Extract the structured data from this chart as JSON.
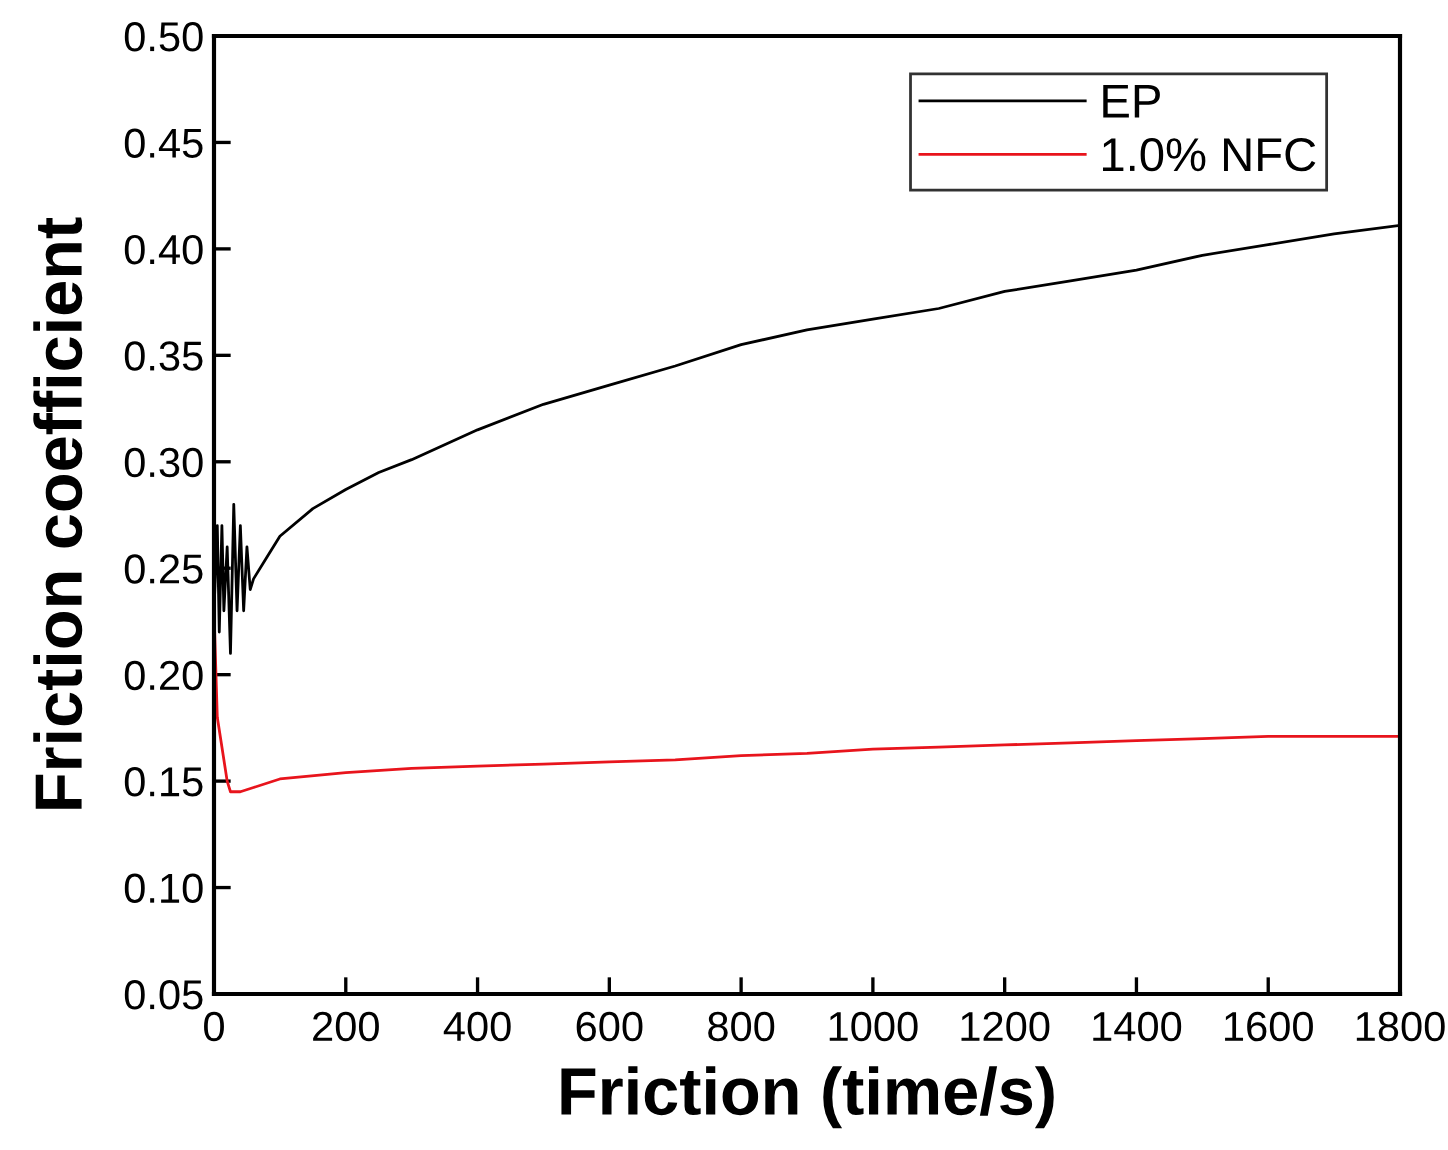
{
  "chart_data": {
    "type": "line",
    "xlabel": "Friction (time/s)",
    "ylabel": "Friction coefficient",
    "xlim": [
      0,
      1800
    ],
    "ylim": [
      0.05,
      0.5
    ],
    "xticks": [
      0,
      200,
      400,
      600,
      800,
      1000,
      1200,
      1400,
      1600,
      1800
    ],
    "yticks": [
      {
        "value": 0.05,
        "label": "0.05"
      },
      {
        "value": 0.1,
        "label": "0.10"
      },
      {
        "value": 0.15,
        "label": "0.15"
      },
      {
        "value": 0.2,
        "label": "0.20"
      },
      {
        "value": 0.25,
        "label": "0.25"
      },
      {
        "value": 0.3,
        "label": "0.30"
      },
      {
        "value": 0.35,
        "label": "0.35"
      },
      {
        "value": 0.4,
        "label": "0.40"
      },
      {
        "value": 0.45,
        "label": "0.45"
      },
      {
        "value": 0.5,
        "label": "0.50"
      }
    ],
    "grid": false,
    "legend": "top right",
    "marker": "none",
    "line_style": "solid",
    "series": [
      {
        "name": "EP",
        "color": "#000000",
        "x": [
          0,
          5,
          8,
          12,
          15,
          20,
          25,
          30,
          35,
          40,
          45,
          50,
          55,
          60,
          80,
          100,
          150,
          200,
          250,
          300,
          400,
          500,
          600,
          700,
          800,
          900,
          1000,
          1100,
          1200,
          1300,
          1400,
          1500,
          1600,
          1700,
          1800
        ],
        "values": [
          0.23,
          0.27,
          0.22,
          0.27,
          0.23,
          0.26,
          0.21,
          0.28,
          0.23,
          0.27,
          0.23,
          0.26,
          0.24,
          0.245,
          0.255,
          0.265,
          0.278,
          0.287,
          0.295,
          0.301,
          0.315,
          0.327,
          0.336,
          0.345,
          0.355,
          0.362,
          0.367,
          0.372,
          0.38,
          0.385,
          0.39,
          0.397,
          0.402,
          0.407,
          0.411
        ]
      },
      {
        "name": "1.0% NFC",
        "color": "#e8141c",
        "x": [
          0,
          5,
          10,
          15,
          20,
          25,
          40,
          60,
          100,
          200,
          300,
          400,
          500,
          600,
          700,
          800,
          900,
          1000,
          1100,
          1200,
          1300,
          1400,
          1500,
          1600,
          1700,
          1800
        ],
        "values": [
          0.23,
          0.18,
          0.17,
          0.16,
          0.15,
          0.145,
          0.145,
          0.147,
          0.151,
          0.154,
          0.156,
          0.157,
          0.158,
          0.159,
          0.16,
          0.162,
          0.163,
          0.165,
          0.166,
          0.167,
          0.168,
          0.169,
          0.17,
          0.171,
          0.171,
          0.171
        ]
      }
    ]
  }
}
